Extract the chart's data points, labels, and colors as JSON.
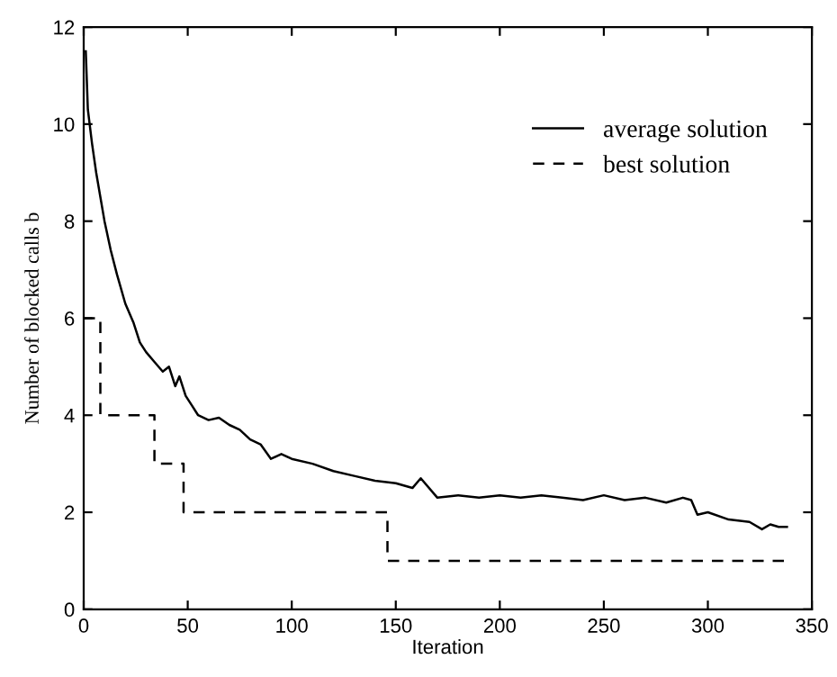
{
  "chart_data": {
    "type": "line",
    "xlabel": "Iteration",
    "ylabel": "Number of blocked calls b",
    "xlim": [
      0,
      350
    ],
    "ylim": [
      0,
      12
    ],
    "xticks": [
      0,
      50,
      100,
      150,
      200,
      250,
      300,
      350
    ],
    "yticks": [
      0,
      2,
      4,
      6,
      8,
      10,
      12
    ],
    "grid": false,
    "legend": "top right",
    "marker": "none",
    "series": [
      {
        "name": "average solution",
        "line_style": "solid",
        "color": "#000000",
        "x": [
          1,
          2,
          4,
          6,
          8,
          10,
          13,
          16,
          20,
          24,
          27,
          30,
          34,
          38,
          41,
          44,
          46,
          49,
          52,
          55,
          60,
          65,
          70,
          75,
          80,
          85,
          90,
          95,
          100,
          110,
          120,
          130,
          140,
          150,
          158,
          162,
          170,
          180,
          190,
          200,
          210,
          220,
          230,
          240,
          250,
          260,
          270,
          280,
          288,
          292,
          295,
          300,
          310,
          320,
          326,
          330,
          334,
          338
        ],
        "values": [
          11.5,
          10.3,
          9.6,
          9.0,
          8.5,
          8.0,
          7.4,
          6.9,
          6.3,
          5.9,
          5.5,
          5.3,
          5.1,
          4.9,
          5.0,
          4.6,
          4.8,
          4.4,
          4.2,
          4.0,
          3.9,
          3.95,
          3.8,
          3.7,
          3.5,
          3.4,
          3.1,
          3.2,
          3.1,
          3.0,
          2.85,
          2.75,
          2.65,
          2.6,
          2.5,
          2.7,
          2.3,
          2.35,
          2.3,
          2.35,
          2.3,
          2.35,
          2.3,
          2.25,
          2.35,
          2.25,
          2.3,
          2.2,
          2.3,
          2.25,
          1.95,
          2.0,
          1.85,
          1.8,
          1.65,
          1.75,
          1.7,
          1.7
        ]
      },
      {
        "name": "best solution",
        "type": "step",
        "line_style": "dashed",
        "color": "#000000",
        "x": [
          0,
          8,
          34,
          48,
          146,
          338
        ],
        "values": [
          6,
          4,
          3,
          2,
          1,
          1
        ]
      }
    ]
  }
}
